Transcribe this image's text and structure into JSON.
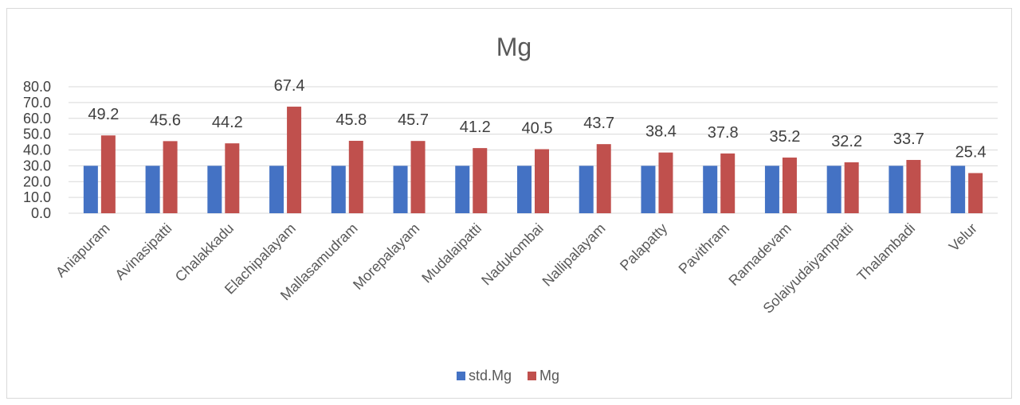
{
  "chart_data": {
    "type": "bar",
    "title": "Mg",
    "categories": [
      "Aniapuram",
      "Avinasipatti",
      "Chalakkadu",
      "Elachipalayam",
      "Mallasamudram",
      "Morepalayam",
      "Mudalaipatti",
      "Nadukombai",
      "Nallipalayam",
      "Palapatty",
      "Pavithram",
      "Ramadevam",
      "Solaiyudaiyampatti",
      "Thalambadi",
      "Velur"
    ],
    "series": [
      {
        "name": "std.Mg",
        "color": "#4472c4",
        "values": [
          30,
          30,
          30,
          30,
          30,
          30,
          30,
          30,
          30,
          30,
          30,
          30,
          30,
          30,
          30
        ]
      },
      {
        "name": "Mg",
        "color": "#c0504d",
        "values": [
          49.2,
          45.6,
          44.2,
          67.4,
          45.8,
          45.7,
          41.2,
          40.5,
          43.7,
          38.4,
          37.8,
          35.2,
          32.2,
          33.7,
          25.4
        ]
      }
    ],
    "data_labels": [
      "49.2",
      "45.6",
      "44.2",
      "67.4",
      "45.8",
      "45.7",
      "41.2",
      "40.5",
      "43.7",
      "38.4",
      "37.8",
      "35.2",
      "32.2",
      "33.7",
      "25.4"
    ],
    "yticks": [
      "0.0",
      "10.0",
      "20.0",
      "30.0",
      "40.0",
      "50.0",
      "60.0",
      "70.0",
      "80.0"
    ],
    "ylim": [
      0,
      80
    ],
    "grid": true,
    "legend": "bottom",
    "xlabel": "",
    "ylabel": ""
  }
}
